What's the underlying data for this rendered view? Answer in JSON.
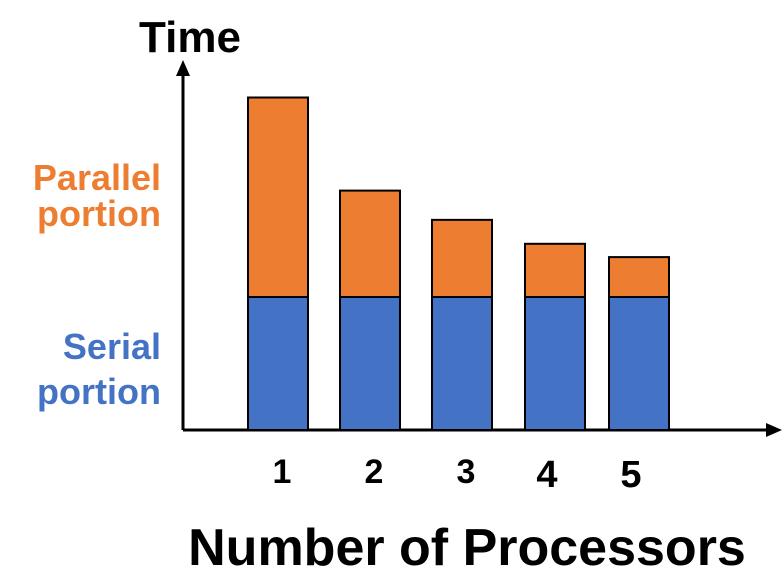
{
  "chart_data": {
    "type": "bar",
    "stacked": true,
    "title": "",
    "xlabel": "Number of Processors",
    "ylabel": "Time",
    "categories": [
      "1",
      "2",
      "3",
      "4",
      "5"
    ],
    "series": [
      {
        "name": "Serial portion",
        "label_lines": [
          "Serial",
          "portion"
        ],
        "color": "#4472c4",
        "values": [
          1.0,
          1.0,
          1.0,
          1.0,
          1.0
        ]
      },
      {
        "name": "Parallel portion",
        "label_lines": [
          "Parallel",
          "portion"
        ],
        "color": "#ed7d31",
        "values": [
          1.5,
          0.8,
          0.58,
          0.4,
          0.3
        ]
      }
    ],
    "ylim": [
      0,
      2.9
    ],
    "grid": false,
    "legend": "left"
  }
}
